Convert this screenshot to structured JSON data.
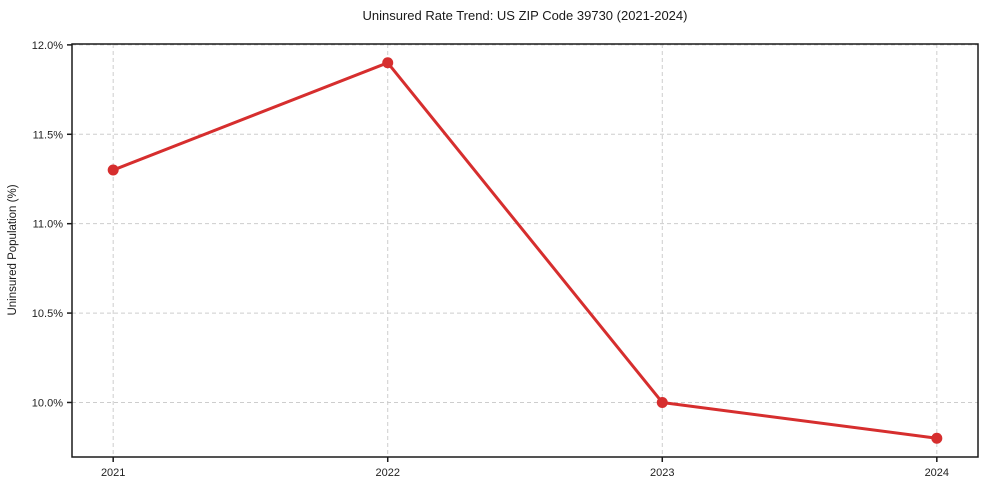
{
  "chart_data": {
    "type": "line",
    "title": "Uninsured Rate Trend: US ZIP Code 39730 (2021-2024)",
    "xlabel": "",
    "ylabel": "Uninsured Population (%)",
    "x": [
      2021,
      2022,
      2023,
      2024
    ],
    "values": [
      11.3,
      11.9,
      10.0,
      9.8
    ],
    "xticks": {
      "values": [
        2021,
        2022,
        2023,
        2024
      ],
      "labels": [
        "2021",
        "2022",
        "2023",
        "2024"
      ]
    },
    "yticks": {
      "values": [
        10.0,
        10.5,
        11.0,
        11.5,
        12.0
      ],
      "labels": [
        "10.0%",
        "10.5%",
        "11.0%",
        "11.5%",
        "12.0%"
      ]
    },
    "xlim": [
      2020.85,
      2024.15
    ],
    "ylim": [
      9.695,
      12.005
    ],
    "grid": true,
    "legend": "none",
    "colors": {
      "line": "#d62e2e",
      "marker": "#d62e2e",
      "grid": "#cdcdcd",
      "spine": "#1a1a1a",
      "background": "#ffffff"
    }
  }
}
